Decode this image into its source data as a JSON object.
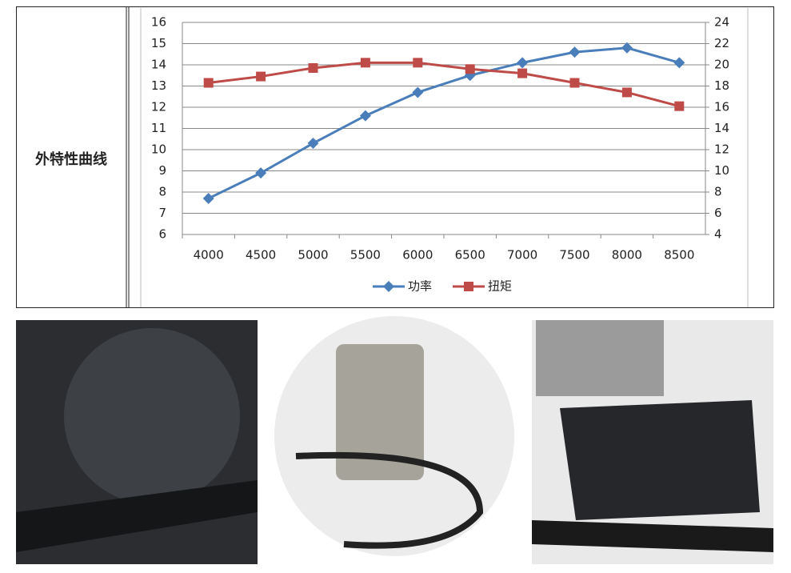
{
  "table_label": "外特性曲线",
  "chart_data": {
    "type": "line",
    "categories": [
      "4000",
      "4500",
      "5000",
      "5500",
      "6000",
      "6500",
      "7000",
      "7500",
      "8000",
      "8500"
    ],
    "series": [
      {
        "name": "功率",
        "color": "#4a7ebb",
        "marker": "diamond",
        "values": [
          7.7,
          8.9,
          10.3,
          11.6,
          12.7,
          13.5,
          14.1,
          14.6,
          14.8,
          14.1
        ]
      },
      {
        "name": "扭矩",
        "color": "#be4b48",
        "marker": "square",
        "axis": "y2",
        "values": [
          18.3,
          18.9,
          19.7,
          20.2,
          20.2,
          19.6,
          19.2,
          18.3,
          17.4,
          16.1
        ]
      }
    ],
    "ylim": [
      6,
      16
    ],
    "yticks": [
      6,
      7,
      8,
      9,
      10,
      11,
      12,
      13,
      14,
      15,
      16
    ],
    "y2lim": [
      4,
      24
    ],
    "y2ticks": [
      4,
      6,
      8,
      10,
      12,
      14,
      16,
      18,
      20,
      22,
      24
    ],
    "grid": true,
    "legend": "bottom"
  }
}
